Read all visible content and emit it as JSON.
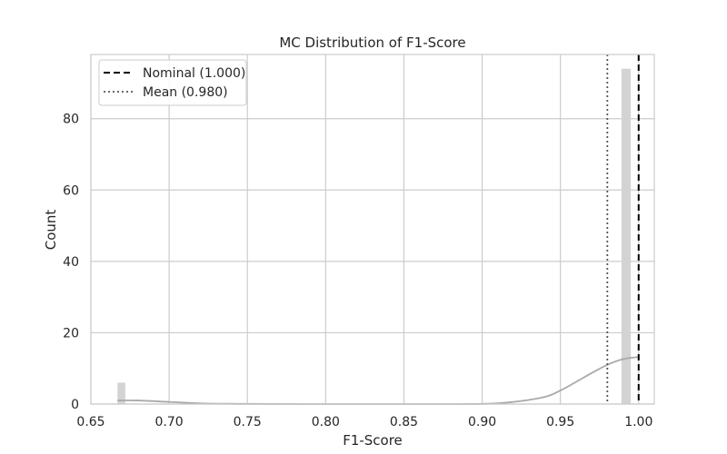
{
  "chart_data": {
    "type": "histogram",
    "title": "MC Distribution of F1-Score",
    "xlabel": "F1-Score",
    "ylabel": "Count",
    "xlim": [
      0.65,
      1.01
    ],
    "ylim": [
      0,
      98
    ],
    "xticks": [
      0.65,
      0.7,
      0.75,
      0.8,
      0.85,
      0.9,
      0.95,
      1.0
    ],
    "xtick_labels": [
      "0.65",
      "0.70",
      "0.75",
      "0.80",
      "0.85",
      "0.90",
      "0.95",
      "1.00"
    ],
    "yticks": [
      0,
      20,
      40,
      60,
      80
    ],
    "ytick_labels": [
      "0",
      "20",
      "40",
      "60",
      "80"
    ],
    "grid": true,
    "bars": [
      {
        "x0": 0.667,
        "x1": 0.672,
        "count": 6
      },
      {
        "x0": 0.989,
        "x1": 0.995,
        "count": 94
      }
    ],
    "bar_color": "#d3d3d3",
    "kde": {
      "color": "#a9a9a9",
      "x": [
        0.667,
        0.68,
        0.7,
        0.72,
        0.75,
        0.8,
        0.85,
        0.9,
        0.92,
        0.94,
        0.95,
        0.96,
        0.97,
        0.98,
        0.99,
        1.0
      ],
      "y": [
        1.0,
        1.0,
        0.6,
        0.2,
        0.05,
        0.0,
        0.0,
        0.05,
        0.6,
        2.0,
        3.8,
        6.2,
        8.7,
        11.0,
        12.6,
        13.2
      ]
    },
    "vlines": [
      {
        "x": 1.0,
        "style": "dashed",
        "color": "#000000"
      },
      {
        "x": 0.98,
        "style": "dotted",
        "color": "#555555"
      }
    ],
    "legend": {
      "position": "top-left",
      "entries": [
        {
          "label": "Nominal (1.000)",
          "style": "dashed",
          "color": "#000000"
        },
        {
          "label": "Mean (0.980)",
          "style": "dotted",
          "color": "#555555"
        }
      ]
    }
  }
}
